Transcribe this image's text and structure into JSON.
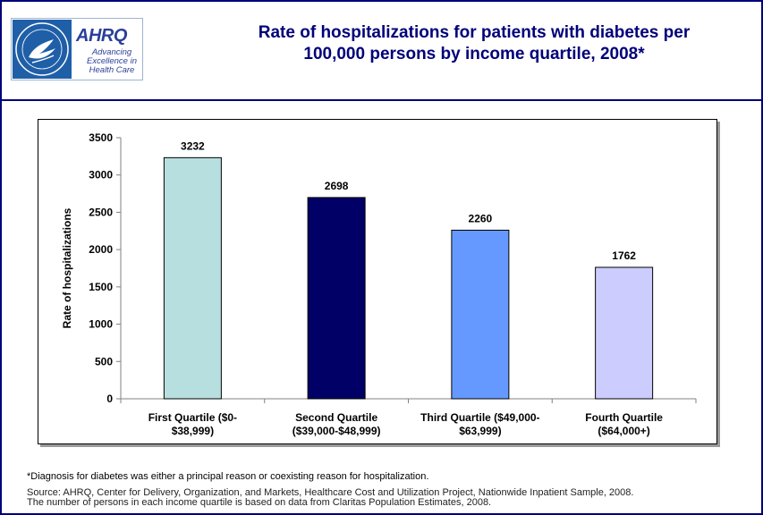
{
  "logo": {
    "wordmark": "AHRQ",
    "tagline": "Advancing Excellence in Health Care"
  },
  "title": {
    "line1": "Rate of hospitalizations for patients with diabetes per",
    "line2": "100,000 persons by income quartile, 2008*"
  },
  "chart_data": {
    "type": "bar",
    "categories": [
      [
        "First Quartile ($0-",
        "$38,999)"
      ],
      [
        "Second Quartile",
        "($39,000-$48,999)"
      ],
      [
        "Third Quartile ($49,000-",
        "$63,999)"
      ],
      [
        "Fourth Quartile",
        "($64,000+)"
      ]
    ],
    "values": [
      3232,
      2698,
      2260,
      1762
    ],
    "bar_colors": [
      "#b8dfe0",
      "#000066",
      "#6699ff",
      "#ccccff"
    ],
    "ylabel": "Rate of hospitalizations",
    "ylim": [
      0,
      3500
    ],
    "yticks": [
      0,
      500,
      1000,
      1500,
      2000,
      2500,
      3000,
      3500
    ],
    "grid": false,
    "legend": "none"
  },
  "footnote": "*Diagnosis for diabetes was either a principal reason or coexisting reason for hospitalization.",
  "source": {
    "line1": "Source: AHRQ, Center for Delivery, Organization, and Markets, Healthcare Cost and Utilization Project, Nationwide Inpatient Sample, 2008.",
    "line2": "The number of persons in each income quartile is based on data from Claritas Population Estimates, 2008."
  }
}
